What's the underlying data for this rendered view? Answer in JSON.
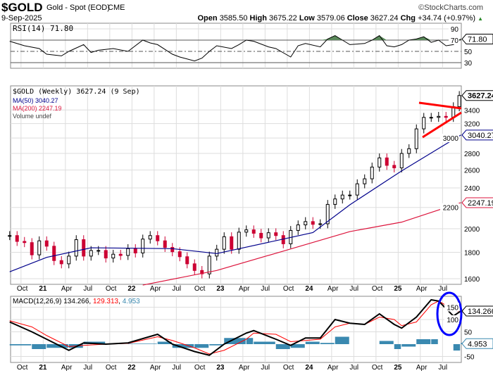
{
  "header": {
    "symbol": "$GOLD",
    "name": "Gold - Spot (EOD)",
    "exchange": "CME",
    "date": "9-Sep-2025",
    "watermark": "©StockCharts.com",
    "open_label": "Open",
    "open": "3585.50",
    "high_label": "High",
    "high": "3675.22",
    "low_label": "Low",
    "low": "3579.06",
    "close_label": "Close",
    "close": "3627.24",
    "chg_label": "Chg",
    "chg": "+34.74 (+0.97%)"
  },
  "colors": {
    "price_up": "#000000",
    "price_down": "#cc0033",
    "ma50": "#00008b",
    "ma200": "#dc143c",
    "macd": "#000000",
    "signal": "#ff0000",
    "histogram": "#3a89b0",
    "rsi_fill": "#5b8a5b",
    "annotation_lines": "#ff0000",
    "annotation_circle": "#0000ff"
  },
  "chart_data": [
    {
      "type": "line",
      "title": "RSI(14) 71.80",
      "ylim": [
        20,
        100
      ],
      "yticks": [
        90,
        70,
        50,
        30
      ],
      "last_label": "71.80",
      "x": [
        "2020-08",
        "2020-10",
        "2020-12",
        "2021-01",
        "2021-03",
        "2021-04",
        "2021-06",
        "2021-07",
        "2021-08",
        "2021-10",
        "2021-12",
        "2022-02",
        "2022-03",
        "2022-04",
        "2022-06",
        "2022-07",
        "2022-09",
        "2022-10",
        "2022-11",
        "2022-12",
        "2023-02",
        "2023-03",
        "2023-04",
        "2023-05",
        "2023-07",
        "2023-08",
        "2023-10",
        "2023-11",
        "2023-12",
        "2024-02",
        "2024-03",
        "2024-04",
        "2024-05",
        "2024-06",
        "2024-08",
        "2024-09",
        "2024-10",
        "2024-11",
        "2024-12",
        "2025-01",
        "2025-02",
        "2025-03",
        "2025-04",
        "2025-05",
        "2025-06",
        "2025-07",
        "2025-08",
        "2025-09"
      ],
      "values": [
        68,
        60,
        55,
        45,
        42,
        50,
        62,
        48,
        52,
        55,
        50,
        70,
        65,
        62,
        45,
        40,
        33,
        38,
        50,
        60,
        55,
        62,
        70,
        68,
        58,
        55,
        40,
        60,
        64,
        58,
        72,
        78,
        70,
        62,
        64,
        70,
        78,
        60,
        58,
        62,
        70,
        72,
        76,
        66,
        70,
        60,
        62,
        71.8
      ]
    },
    {
      "type": "candlestick",
      "title": "$GOLD (Weekly) 3627.24 (9 Sep)",
      "scale": "log",
      "ylim": [
        1580,
        3720
      ],
      "yticks": [
        3400,
        3200,
        3000,
        2800,
        2600,
        2400,
        2200,
        2000,
        1800,
        1600
      ],
      "xticks": [
        "Oct",
        "21",
        "Apr",
        "Jul",
        "Oct",
        "22",
        "Apr",
        "Jul",
        "Oct",
        "23",
        "Apr",
        "Jul",
        "Oct",
        "24",
        "Apr",
        "Jul",
        "Oct",
        "25",
        "Apr",
        "Jul"
      ],
      "legend": {
        "ma50": "MA(50) 3040.27",
        "ma200": "MA(200) 2247.19",
        "volume": "Volume undef"
      },
      "last_labels": {
        "price": "3627.24",
        "ma50": "3040.27",
        "ma200": "2247.19"
      },
      "x": [
        "2020-08",
        "2020-09",
        "2020-10",
        "2020-11",
        "2020-12",
        "2021-01",
        "2021-02",
        "2021-03",
        "2021-04",
        "2021-05",
        "2021-06",
        "2021-07",
        "2021-08",
        "2021-09",
        "2021-10",
        "2021-11",
        "2021-12",
        "2022-01",
        "2022-02",
        "2022-03",
        "2022-04",
        "2022-05",
        "2022-06",
        "2022-07",
        "2022-08",
        "2022-09",
        "2022-10",
        "2022-11",
        "2022-12",
        "2023-01",
        "2023-02",
        "2023-03",
        "2023-04",
        "2023-05",
        "2023-06",
        "2023-07",
        "2023-08",
        "2023-09",
        "2023-10",
        "2023-11",
        "2023-12",
        "2024-01",
        "2024-02",
        "2024-03",
        "2024-04",
        "2024-05",
        "2024-06",
        "2024-07",
        "2024-08",
        "2024-09",
        "2024-10",
        "2024-11",
        "2024-12",
        "2025-01",
        "2025-02",
        "2025-03",
        "2025-04",
        "2025-05",
        "2025-06",
        "2025-07",
        "2025-08",
        "2025-09"
      ],
      "close": [
        1940,
        1890,
        1880,
        1780,
        1895,
        1850,
        1735,
        1710,
        1770,
        1905,
        1770,
        1815,
        1815,
        1755,
        1785,
        1775,
        1830,
        1795,
        1910,
        1940,
        1895,
        1840,
        1805,
        1765,
        1710,
        1660,
        1635,
        1770,
        1825,
        1930,
        1825,
        1970,
        1990,
        1960,
        1920,
        1965,
        1940,
        1870,
        1985,
        2035,
        2065,
        2040,
        2045,
        2230,
        2285,
        2325,
        2325,
        2445,
        2500,
        2635,
        2745,
        2655,
        2625,
        2800,
        2860,
        3125,
        3290,
        3290,
        3305,
        3290,
        3450,
        3627.24
      ],
      "ma50": {
        "x": [
          "2020-08",
          "2021-01",
          "2021-07",
          "2022-06",
          "2022-12",
          "2023-09",
          "2024-01",
          "2024-06",
          "2025-01",
          "2025-09"
        ],
        "values": [
          1650,
          1760,
          1837,
          1830,
          1790,
          1910,
          1966,
          2226,
          2590,
          3040.27
        ]
      },
      "ma200": {
        "x": [
          "2022-02",
          "2022-12",
          "2023-09",
          "2024-06",
          "2025-01",
          "2025-09"
        ],
        "values": [
          1555,
          1660,
          1810,
          1975,
          2060,
          2247.19
        ]
      }
    },
    {
      "type": "line",
      "title": "MACD(12,26,9)",
      "legend": {
        "macd": "MACD(12,26,9) 134.266",
        "signal": "129.313",
        "histogram": "4.953"
      },
      "ylim": [
        -75,
        200
      ],
      "yticks": [
        150,
        100,
        50,
        -50
      ],
      "last_labels": {
        "macd": "134.266",
        "histogram": "4.953"
      },
      "x": [
        "2020-08",
        "2020-11",
        "2021-01",
        "2021-04",
        "2021-06",
        "2021-09",
        "2021-12",
        "2022-04",
        "2022-06",
        "2022-09",
        "2022-11",
        "2023-01",
        "2023-04",
        "2023-05",
        "2023-08",
        "2023-10",
        "2023-12",
        "2024-02",
        "2024-04",
        "2024-06",
        "2024-08",
        "2024-10",
        "2024-12",
        "2025-01",
        "2025-03",
        "2025-05",
        "2025-06",
        "2025-08",
        "2025-09"
      ],
      "macd": [
        90,
        50,
        20,
        -25,
        5,
        0,
        5,
        40,
        0,
        -30,
        -45,
        0,
        45,
        55,
        20,
        -5,
        25,
        25,
        100,
        85,
        80,
        123,
        80,
        65,
        110,
        180,
        175,
        114,
        134.266
      ],
      "signal": [
        95,
        70,
        35,
        -10,
        -5,
        0,
        3,
        30,
        15,
        -15,
        -40,
        -25,
        20,
        45,
        40,
        10,
        15,
        20,
        70,
        85,
        80,
        110,
        100,
        75,
        90,
        160,
        175,
        140,
        129.313
      ]
    }
  ]
}
